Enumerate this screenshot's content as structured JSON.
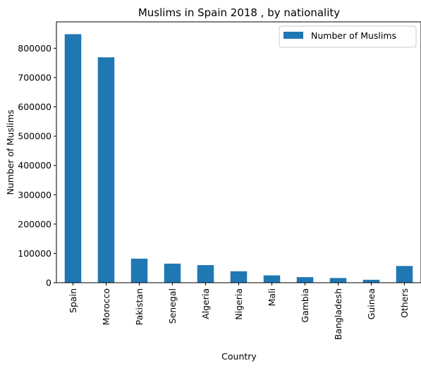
{
  "chart_data": {
    "type": "bar",
    "title": "Muslims in Spain 2018 , by nationality",
    "xlabel": "Country",
    "ylabel": "Number of Muslims",
    "categories": [
      "Spain",
      "Morocco",
      "Pakistan",
      "Senegal",
      "Algeria",
      "Nigeria",
      "Mali",
      "Gambia",
      "Bangladesh",
      "Guinea",
      "Others"
    ],
    "series": [
      {
        "name": "Number of Muslims",
        "color": "#1f77b4",
        "values": [
          848000,
          769000,
          82000,
          65000,
          60000,
          39000,
          25000,
          19000,
          16000,
          10000,
          57000
        ]
      }
    ],
    "ylim": [
      0,
      890000
    ],
    "yticks": [
      0,
      100000,
      200000,
      300000,
      400000,
      500000,
      600000,
      700000,
      800000
    ],
    "ytick_labels": [
      "0",
      "100000",
      "200000",
      "300000",
      "400000",
      "500000",
      "600000",
      "700000",
      "800000"
    ],
    "grid": false,
    "legend_position": "top-right"
  }
}
